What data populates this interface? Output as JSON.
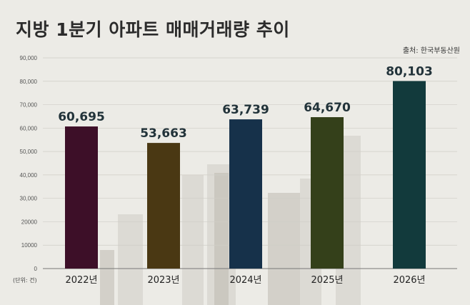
{
  "chart_data": {
    "type": "bar",
    "title": "지방 1분기 아파트 매매거래량 추이",
    "source": "출처: 한국부동산원",
    "unit_label": "(단위: 건)",
    "categories": [
      "2022년",
      "2023년",
      "2024년",
      "2025년",
      "2026년"
    ],
    "values": [
      60695,
      53663,
      63739,
      64670,
      80103
    ],
    "value_labels": [
      "60,695",
      "53,663",
      "63,739",
      "64,670",
      "80,103"
    ],
    "bar_colors": [
      "#3d0f28",
      "#4a3813",
      "#16314a",
      "#34401a",
      "#123a3c"
    ],
    "ylim": [
      0,
      90000
    ],
    "yticks": [
      0,
      10000,
      20000,
      30000,
      40000,
      50000,
      60000,
      70000,
      80000,
      90000
    ],
    "ytick_labels": [
      "0",
      "10000",
      "20000",
      "30,000",
      "40,000",
      "50,000",
      "60,000",
      "70,000",
      "80,000",
      "90,000"
    ],
    "grid": true,
    "legend": "none"
  }
}
